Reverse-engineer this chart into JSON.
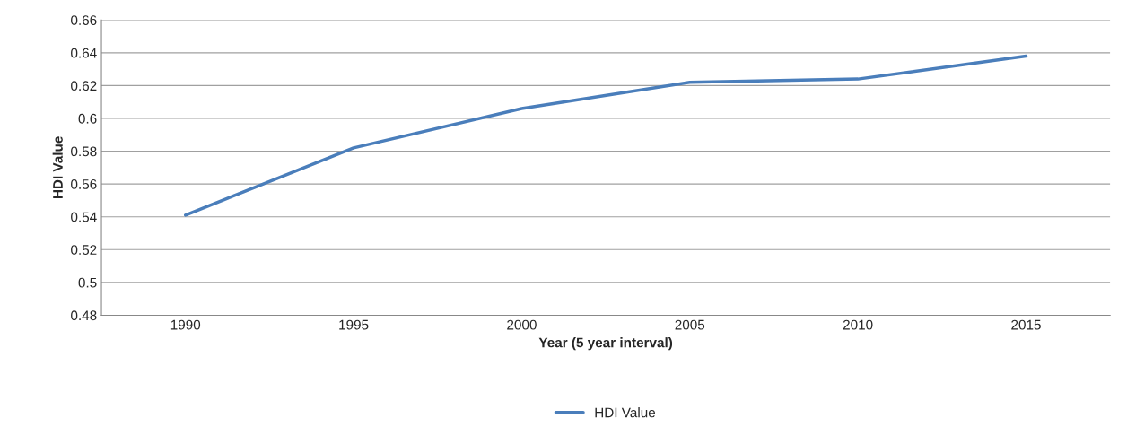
{
  "chart_data": {
    "type": "line",
    "xlabel": "Year (5 year interval)",
    "ylabel": "HDI Value",
    "categories": [
      "1990",
      "1995",
      "2000",
      "2005",
      "2010",
      "2015"
    ],
    "series": [
      {
        "name": "HDI Value",
        "color": "#4a7ebb",
        "values": [
          0.541,
          0.582,
          0.606,
          0.622,
          0.624,
          0.638
        ]
      }
    ],
    "ylim": [
      0.48,
      0.66
    ],
    "yticks": [
      0.48,
      0.5,
      0.52,
      0.54,
      0.56,
      0.58,
      0.6,
      0.62,
      0.64,
      0.66
    ],
    "grid": "y",
    "legend": "bottom",
    "marker": "none",
    "line_style": "solid"
  }
}
